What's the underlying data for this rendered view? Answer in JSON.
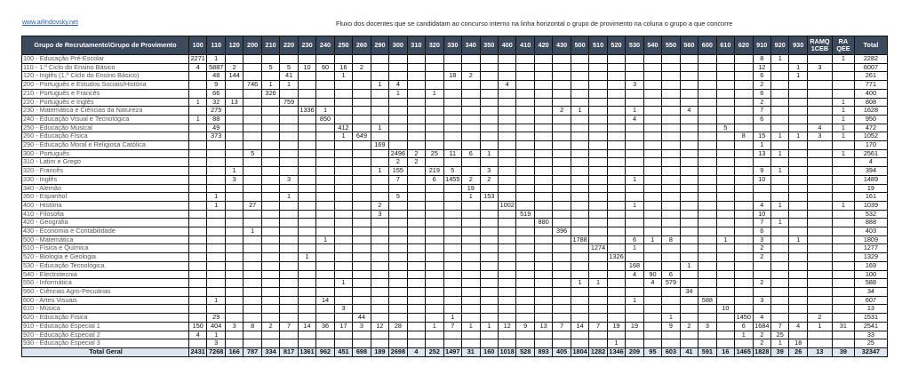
{
  "site_link": "www.arlindovsky.net",
  "title": "Fluxo dos docentes que se candidatam ao concurso interno na linha horizontal o grupo de provimento na coluna o grupo a que concorre",
  "header_label": "Grupo de Recrutamento\\Grupo de Provimento",
  "columns": [
    {
      "key": "100",
      "label": "100"
    },
    {
      "key": "110",
      "label": "110"
    },
    {
      "key": "120",
      "label": "120"
    },
    {
      "key": "200",
      "label": "200"
    },
    {
      "key": "210",
      "label": "210"
    },
    {
      "key": "220",
      "label": "220"
    },
    {
      "key": "230",
      "label": "230"
    },
    {
      "key": "240",
      "label": "240"
    },
    {
      "key": "250",
      "label": "250"
    },
    {
      "key": "260",
      "label": "260"
    },
    {
      "key": "290",
      "label": "290"
    },
    {
      "key": "300",
      "label": "300"
    },
    {
      "key": "310",
      "label": "310"
    },
    {
      "key": "320",
      "label": "320"
    },
    {
      "key": "330",
      "label": "330"
    },
    {
      "key": "340",
      "label": "340"
    },
    {
      "key": "350",
      "label": "350"
    },
    {
      "key": "400",
      "label": "400"
    },
    {
      "key": "410",
      "label": "410"
    },
    {
      "key": "420",
      "label": "420"
    },
    {
      "key": "430",
      "label": "430"
    },
    {
      "key": "500",
      "label": "500"
    },
    {
      "key": "510",
      "label": "510"
    },
    {
      "key": "520",
      "label": "520"
    },
    {
      "key": "530",
      "label": "530"
    },
    {
      "key": "540",
      "label": "540"
    },
    {
      "key": "550",
      "label": "550"
    },
    {
      "key": "560",
      "label": "560"
    },
    {
      "key": "600",
      "label": "600"
    },
    {
      "key": "610",
      "label": "610"
    },
    {
      "key": "620",
      "label": "620"
    },
    {
      "key": "910",
      "label": "910"
    },
    {
      "key": "920",
      "label": "920"
    },
    {
      "key": "930",
      "label": "930"
    },
    {
      "key": "ramq",
      "label": "RAMQ\n1CEB"
    },
    {
      "key": "raqee",
      "label": "RA\nQEE"
    },
    {
      "key": "total",
      "label": "Total"
    }
  ],
  "rows": [
    {
      "label": "100 - Educação Pré-Escolar",
      "cells": {
        "100": "2271",
        "110": "1",
        "910": "8",
        "920": "1",
        "raqee": "1",
        "total": "2282"
      }
    },
    {
      "label": "110 - 1.º Ciclo do Ensino Básico",
      "cells": {
        "100": "4",
        "110": "5887",
        "120": "2",
        "210": "5",
        "220": "5",
        "230": "10",
        "240": "60",
        "250": "16",
        "260": "2",
        "910": "12",
        "930": "1",
        "ramq": "3",
        "total": "6007"
      }
    },
    {
      "label": "120 - Inglês (1.º Ciclo do Ensino Básico)",
      "cells": {
        "110": "48",
        "120": "144",
        "220": "41",
        "250": "1",
        "330": "18",
        "340": "2",
        "910": "6",
        "930": "1",
        "total": "261"
      }
    },
    {
      "label": "200 - Português e Estudos Sociais/História",
      "cells": {
        "110": "9",
        "200": "746",
        "210": "1",
        "220": "1",
        "290": "1",
        "300": "4",
        "400": "4",
        "530": "3",
        "910": "2",
        "total": "771"
      }
    },
    {
      "label": "210 - Português e Francês",
      "cells": {
        "110": "66",
        "210": "326",
        "300": "1",
        "320": "1",
        "910": "6",
        "total": "400"
      }
    },
    {
      "label": "220 - Português e Inglês",
      "cells": {
        "100": "1",
        "110": "32",
        "120": "13",
        "220": "759",
        "910": "2",
        "raqee": "1",
        "total": "808"
      }
    },
    {
      "label": "230 - Matemática e Ciências da Natureza",
      "cells": {
        "110": "275",
        "230": "1336",
        "240": "1",
        "430": "2",
        "500": "1",
        "530": "1",
        "560": "4",
        "910": "7",
        "raqee": "1",
        "total": "1628"
      }
    },
    {
      "label": "240 - Educação Visual e Tecnológica",
      "cells": {
        "100": "1",
        "110": "88",
        "240": "850",
        "530": "4",
        "910": "6",
        "raqee": "1",
        "total": "950"
      }
    },
    {
      "label": "250 - Educação Musical",
      "cells": {
        "110": "49",
        "250": "412",
        "290": "1",
        "610": "5",
        "ramq": "4",
        "raqee": "1",
        "total": "472"
      }
    },
    {
      "label": "260 - Educação Física",
      "cells": {
        "110": "373",
        "250": "1",
        "260": "649",
        "620": "8",
        "910": "15",
        "920": "1",
        "930": "1",
        "ramq": "3",
        "raqee": "1",
        "total": "1052"
      }
    },
    {
      "label": "290 - Educação Moral e Religiosa Católica",
      "cells": {
        "290": "169",
        "910": "1",
        "total": "170"
      }
    },
    {
      "label": "300 - Português",
      "cells": {
        "200": "5",
        "300": "2496",
        "310": "2",
        "320": "25",
        "330": "11",
        "340": "6",
        "350": "1",
        "910": "13",
        "920": "1",
        "raqee": "1",
        "total": "2561"
      }
    },
    {
      "label": "310 - Latim e Grego",
      "cells": {
        "300": "2",
        "310": "2",
        "total": "4"
      }
    },
    {
      "label": "320 - Francês",
      "cells": {
        "120": "1",
        "290": "1",
        "300": "155",
        "320": "219",
        "330": "5",
        "350": "3",
        "910": "9",
        "920": "1",
        "total": "394"
      }
    },
    {
      "label": "330 - Inglês",
      "cells": {
        "120": "3",
        "220": "3",
        "300": "7",
        "320": "6",
        "330": "1455",
        "340": "2",
        "350": "2",
        "530": "1",
        "910": "10",
        "total": "1489"
      }
    },
    {
      "label": "340 - Alemão",
      "cells": {
        "340": "19",
        "total": "19"
      }
    },
    {
      "label": "350 - Espanhol",
      "cells": {
        "110": "1",
        "220": "1",
        "300": "5",
        "340": "1",
        "350": "153",
        "total": "161"
      }
    },
    {
      "label": "400 - História",
      "cells": {
        "110": "1",
        "200": "27",
        "290": "2",
        "400": "1002",
        "530": "1",
        "910": "4",
        "920": "1",
        "raqee": "1",
        "total": "1039"
      }
    },
    {
      "label": "410 - Filosofia",
      "cells": {
        "290": "3",
        "410": "519",
        "910": "10",
        "total": "532"
      }
    },
    {
      "label": "420 - Geografia",
      "cells": {
        "420": "880",
        "910": "7",
        "920": "1",
        "total": "888"
      }
    },
    {
      "label": "430 - Economia e Contabilidade",
      "cells": {
        "200": "1",
        "430": "396",
        "910": "6",
        "total": "403"
      }
    },
    {
      "label": "500 - Matemática",
      "cells": {
        "240": "1",
        "500": "1788",
        "530": "6",
        "540": "1",
        "550": "8",
        "610": "1",
        "910": "3",
        "930": "1",
        "total": "1809"
      }
    },
    {
      "label": "510 - Física e Química",
      "cells": {
        "510": "1274",
        "530": "1",
        "910": "2",
        "total": "1277"
      }
    },
    {
      "label": "520 - Biologia e Geologia",
      "cells": {
        "230": "1",
        "520": "1326",
        "910": "2",
        "total": "1329"
      }
    },
    {
      "label": "530 - Educação Tecnológica",
      "cells": {
        "530": "168",
        "560": "1",
        "total": "169"
      }
    },
    {
      "label": "540 - Electrotecnia",
      "cells": {
        "530": "4",
        "540": "90",
        "550": "6",
        "total": "100"
      }
    },
    {
      "label": "550 - Informática",
      "cells": {
        "250": "1",
        "500": "1",
        "510": "1",
        "540": "4",
        "550": "579",
        "910": "2",
        "total": "588"
      }
    },
    {
      "label": "560 - Ciências Agro-Pecuárias",
      "cells": {
        "560": "34",
        "total": "34"
      }
    },
    {
      "label": "600 - Artes Visuais",
      "cells": {
        "110": "1",
        "240": "14",
        "530": "1",
        "600": "588",
        "910": "3",
        "total": "607"
      }
    },
    {
      "label": "610 - Música",
      "cells": {
        "250": "3",
        "610": "10",
        "total": "13"
      }
    },
    {
      "label": "620 - Educação Física",
      "cells": {
        "110": "29",
        "260": "44",
        "330": "1",
        "550": "1",
        "620": "1450",
        "910": "4",
        "ramq": "2",
        "total": "1531"
      }
    },
    {
      "label": "910 - Educação Especial 1",
      "cells": {
        "100": "150",
        "110": "404",
        "120": "3",
        "200": "8",
        "210": "2",
        "220": "7",
        "230": "14",
        "240": "36",
        "250": "17",
        "260": "3",
        "290": "12",
        "300": "28",
        "320": "1",
        "330": "7",
        "340": "1",
        "350": "1",
        "400": "12",
        "410": "9",
        "420": "13",
        "430": "7",
        "500": "14",
        "510": "7",
        "520": "19",
        "530": "19",
        "550": "9",
        "560": "2",
        "600": "3",
        "620": "6",
        "910": "1684",
        "920": "7",
        "930": "4",
        "ramq": "1",
        "raqee": "31",
        "total": "2541"
      }
    },
    {
      "label": "920 - Educação Especial 2",
      "cells": {
        "100": "4",
        "110": "1",
        "620": "1",
        "910": "2",
        "920": "25",
        "total": "33"
      }
    },
    {
      "label": "930 - Educação Especial 3",
      "cells": {
        "110": "3",
        "520": "1",
        "910": "2",
        "920": "1",
        "930": "18",
        "total": "25"
      }
    }
  ],
  "total_row": {
    "label": "Total Geral",
    "cells": {
      "100": "2431",
      "110": "7268",
      "120": "166",
      "200": "787",
      "210": "334",
      "220": "817",
      "230": "1361",
      "240": "962",
      "250": "451",
      "260": "698",
      "290": "189",
      "300": "2698",
      "310": "4",
      "320": "252",
      "330": "1497",
      "340": "31",
      "350": "160",
      "400": "1018",
      "410": "528",
      "420": "893",
      "430": "405",
      "500": "1804",
      "510": "1282",
      "520": "1346",
      "530": "209",
      "540": "95",
      "550": "603",
      "560": "41",
      "600": "591",
      "610": "16",
      "620": "1465",
      "910": "1828",
      "920": "39",
      "930": "26",
      "ramq": "13",
      "raqee": "39",
      "total": "32347"
    }
  },
  "colors": {
    "header_bg": "#3c4a5e",
    "total_bg": "#dce6f1",
    "link": "#2a5db0"
  }
}
